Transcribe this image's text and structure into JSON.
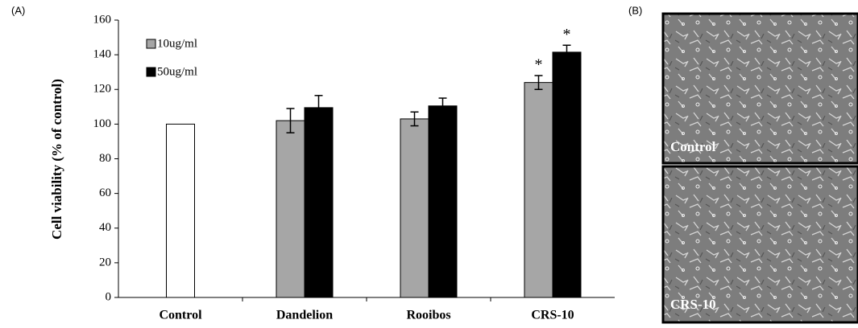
{
  "panel_labels": [
    "(A)",
    "(B)"
  ],
  "chart_data": {
    "type": "bar",
    "y_label": "Cell viability (% of control)",
    "categories": [
      "Control",
      "Dandelion",
      "Rooibos",
      "CRS-10"
    ],
    "series": [
      {
        "color": "#ffffff",
        "values": [
          100,
          null,
          null,
          null
        ]
      },
      {
        "name": "10ug/ml",
        "color": "#a6a6a6",
        "values": [
          null,
          102,
          103,
          124
        ],
        "errors": [
          null,
          7,
          4,
          4
        ],
        "significance": [
          null,
          null,
          null,
          "*"
        ]
      },
      {
        "name": "50ug/ml",
        "color": "#000000",
        "values": [
          null,
          109.5,
          110.5,
          141.5
        ],
        "errors": [
          null,
          7,
          4.5,
          4
        ],
        "significance": [
          null,
          null,
          null,
          "*"
        ]
      }
    ],
    "ylim": [
      0,
      160
    ],
    "yticks": [
      0,
      20,
      40,
      60,
      80,
      100,
      120,
      140,
      160
    ],
    "grid": false,
    "legend": "top-left"
  },
  "images": [
    {
      "label": "Control"
    },
    {
      "label": "CRS-10"
    }
  ]
}
